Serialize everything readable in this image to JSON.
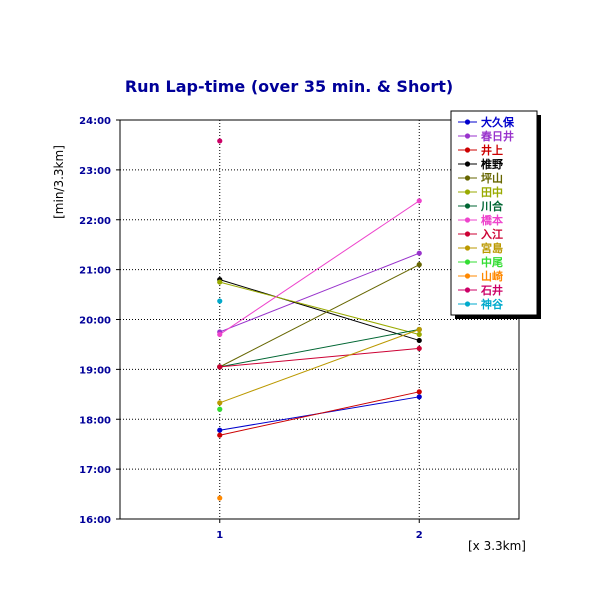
{
  "chart_data": {
    "type": "line",
    "title": "Run Lap-time (over 35 min. & Short)",
    "ylabel": "[min/3.3km]",
    "xlabel": "[x 3.3km]",
    "x": [
      1,
      2
    ],
    "xlim": [
      0.5,
      2.5
    ],
    "ylim": [
      16,
      24
    ],
    "x_tick_labels": [
      "1",
      "2"
    ],
    "y_tick_labels": [
      "16:00",
      "17:00",
      "18:00",
      "19:00",
      "20:00",
      "21:00",
      "22:00",
      "23:00",
      "24:00"
    ],
    "grid": true,
    "legend_position": "top-right",
    "series": [
      {
        "name": "大久保",
        "color": "#0000cc",
        "values": [
          17.78,
          18.45
        ]
      },
      {
        "name": "春日井",
        "color": "#9933cc",
        "values": [
          19.75,
          21.33
        ]
      },
      {
        "name": "井上",
        "color": "#cc0000",
        "values": [
          17.68,
          18.55
        ]
      },
      {
        "name": "椎野",
        "color": "#000000",
        "values": [
          20.8,
          19.58
        ]
      },
      {
        "name": "坪山",
        "color": "#666600",
        "values": [
          19.05,
          21.1
        ]
      },
      {
        "name": "田中",
        "color": "#99aa00",
        "values": [
          20.75,
          19.7
        ]
      },
      {
        "name": "川合",
        "color": "#006633",
        "values": [
          19.05,
          19.8
        ]
      },
      {
        "name": "橋本",
        "color": "#ee44cc",
        "values": [
          19.7,
          22.38
        ]
      },
      {
        "name": "入江",
        "color": "#cc0033",
        "values": [
          19.05,
          19.42
        ]
      },
      {
        "name": "宮島",
        "color": "#bb9900",
        "values": [
          18.33,
          19.8
        ]
      },
      {
        "name": "中尾",
        "color": "#33dd33",
        "values": [
          18.2,
          null
        ]
      },
      {
        "name": "山崎",
        "color": "#ff8800",
        "values": [
          16.42,
          null
        ]
      },
      {
        "name": "石井",
        "color": "#cc0066",
        "values": [
          23.58,
          null
        ]
      },
      {
        "name": "神谷",
        "color": "#00aacc",
        "values": [
          20.37,
          null
        ]
      }
    ]
  }
}
